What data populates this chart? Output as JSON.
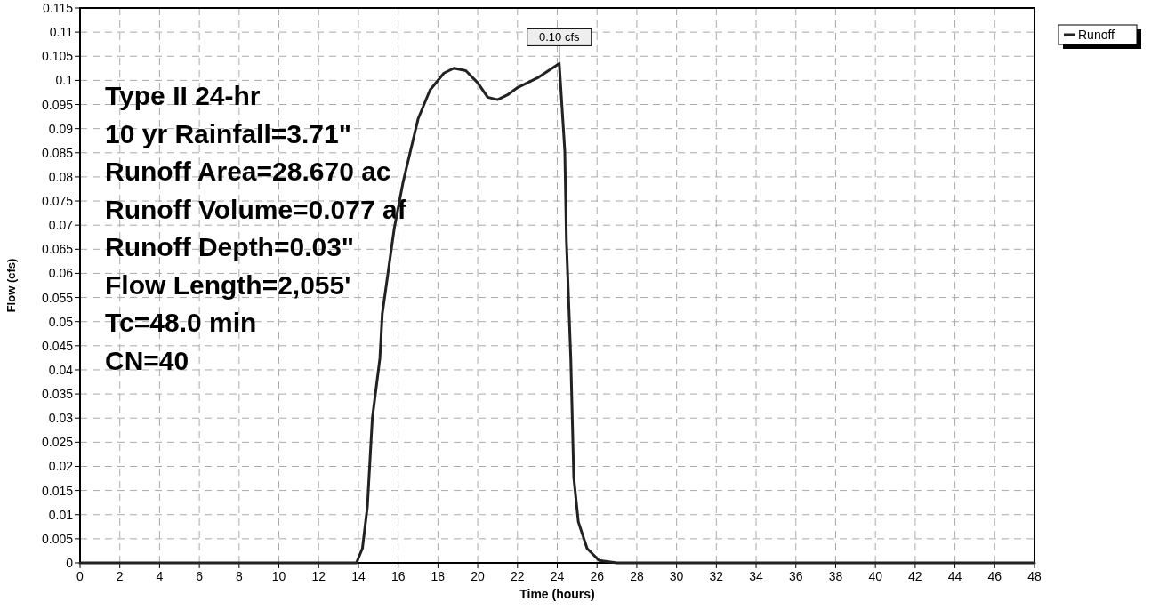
{
  "chart_data": {
    "type": "line",
    "xlabel": "Time  (hours)",
    "ylabel": "Flow  (cfs)",
    "xlim": [
      0,
      48
    ],
    "ylim": [
      0,
      0.115
    ],
    "xticks": [
      0,
      2,
      4,
      6,
      8,
      10,
      12,
      14,
      16,
      18,
      20,
      22,
      24,
      26,
      28,
      30,
      32,
      34,
      36,
      38,
      40,
      42,
      44,
      46,
      48
    ],
    "yticks": [
      0,
      {
        "value": 0.005,
        "label": "0.005"
      },
      {
        "value": 0.01,
        "label": "0.01"
      },
      {
        "value": 0.015,
        "label": "0.015"
      },
      {
        "value": 0.02,
        "label": "0.02"
      },
      {
        "value": 0.025,
        "label": "0.025"
      },
      {
        "value": 0.03,
        "label": "0.03"
      },
      {
        "value": 0.035,
        "label": "0.035"
      },
      {
        "value": 0.04,
        "label": "0.04"
      },
      {
        "value": 0.045,
        "label": "0.045"
      },
      {
        "value": 0.05,
        "label": "0.05"
      },
      {
        "value": 0.055,
        "label": "0.055"
      },
      {
        "value": 0.06,
        "label": "0.06"
      },
      {
        "value": 0.065,
        "label": "0.065"
      },
      {
        "value": 0.07,
        "label": "0.07"
      },
      {
        "value": 0.075,
        "label": "0.075"
      },
      {
        "value": 0.08,
        "label": "0.08"
      },
      {
        "value": 0.085,
        "label": "0.085"
      },
      {
        "value": 0.09,
        "label": "0.09"
      },
      {
        "value": 0.095,
        "label": "0.095"
      },
      {
        "value": 0.1,
        "label": "0.1"
      },
      {
        "value": 0.105,
        "label": "0.105"
      },
      {
        "value": 0.11,
        "label": "0.11"
      },
      {
        "value": 0.115,
        "label": "0.115"
      }
    ],
    "grid": true,
    "legend": "top right",
    "line_style": "solid",
    "marker": "none",
    "series": [
      {
        "name": "Runoff",
        "color": "#222222",
        "x": [
          0,
          13.9,
          14.2,
          14.45,
          14.7,
          15.08,
          15.2,
          15.8,
          16.25,
          17,
          17.6,
          18.3,
          18.8,
          19.4,
          20,
          20.5,
          21,
          21.5,
          22,
          23,
          24.1,
          24.38,
          24.46,
          24.68,
          24.83,
          25.06,
          25.5,
          26.1,
          27,
          48
        ],
        "values": [
          0,
          0,
          0.003,
          0.0116,
          0.03,
          0.0424,
          0.0516,
          0.0693,
          0.079,
          0.092,
          0.098,
          0.1015,
          0.1025,
          0.102,
          0.0995,
          0.0965,
          0.096,
          0.097,
          0.0985,
          0.1005,
          0.1035,
          0.0853,
          0.0669,
          0.0424,
          0.0177,
          0.0085,
          0.003,
          0.0005,
          0,
          0
        ]
      }
    ],
    "annotations": [
      {
        "text": "0.10 cfs",
        "x": 24.1,
        "y": 0.1035
      },
      "Type II 24-hr",
      "10 yr Rainfall=3.71\"",
      "Runoff Area=28.670 ac",
      "Runoff Volume=0.077 af",
      "Runoff Depth=0.03\"",
      "Flow Length=2,055'",
      "Tc=48.0 min",
      "CN=40"
    ]
  }
}
